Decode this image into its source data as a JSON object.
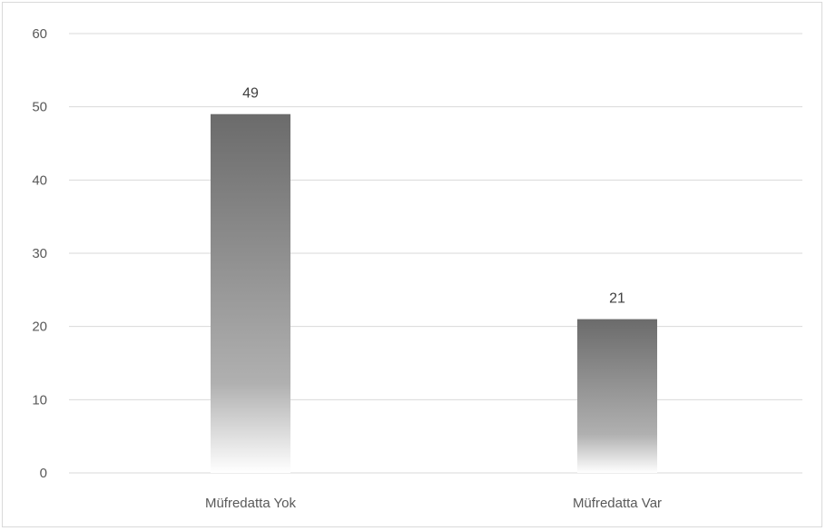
{
  "chart_data": {
    "type": "bar",
    "categories": [
      "Müfredatta Yok",
      "Müfredatta Var"
    ],
    "values": [
      49,
      21
    ],
    "data_labels": [
      "49",
      "21"
    ],
    "yticks": [
      "0",
      "10",
      "20",
      "30",
      "40",
      "50",
      "60"
    ],
    "ylim": [
      0,
      60
    ],
    "grid": true,
    "title": "",
    "xlabel": "",
    "ylabel": "",
    "colors": {
      "bar_top": "#6b6b6b",
      "bar_bottom": "#ffffff",
      "grid": "#d9d9d9",
      "text": "#595959"
    }
  }
}
